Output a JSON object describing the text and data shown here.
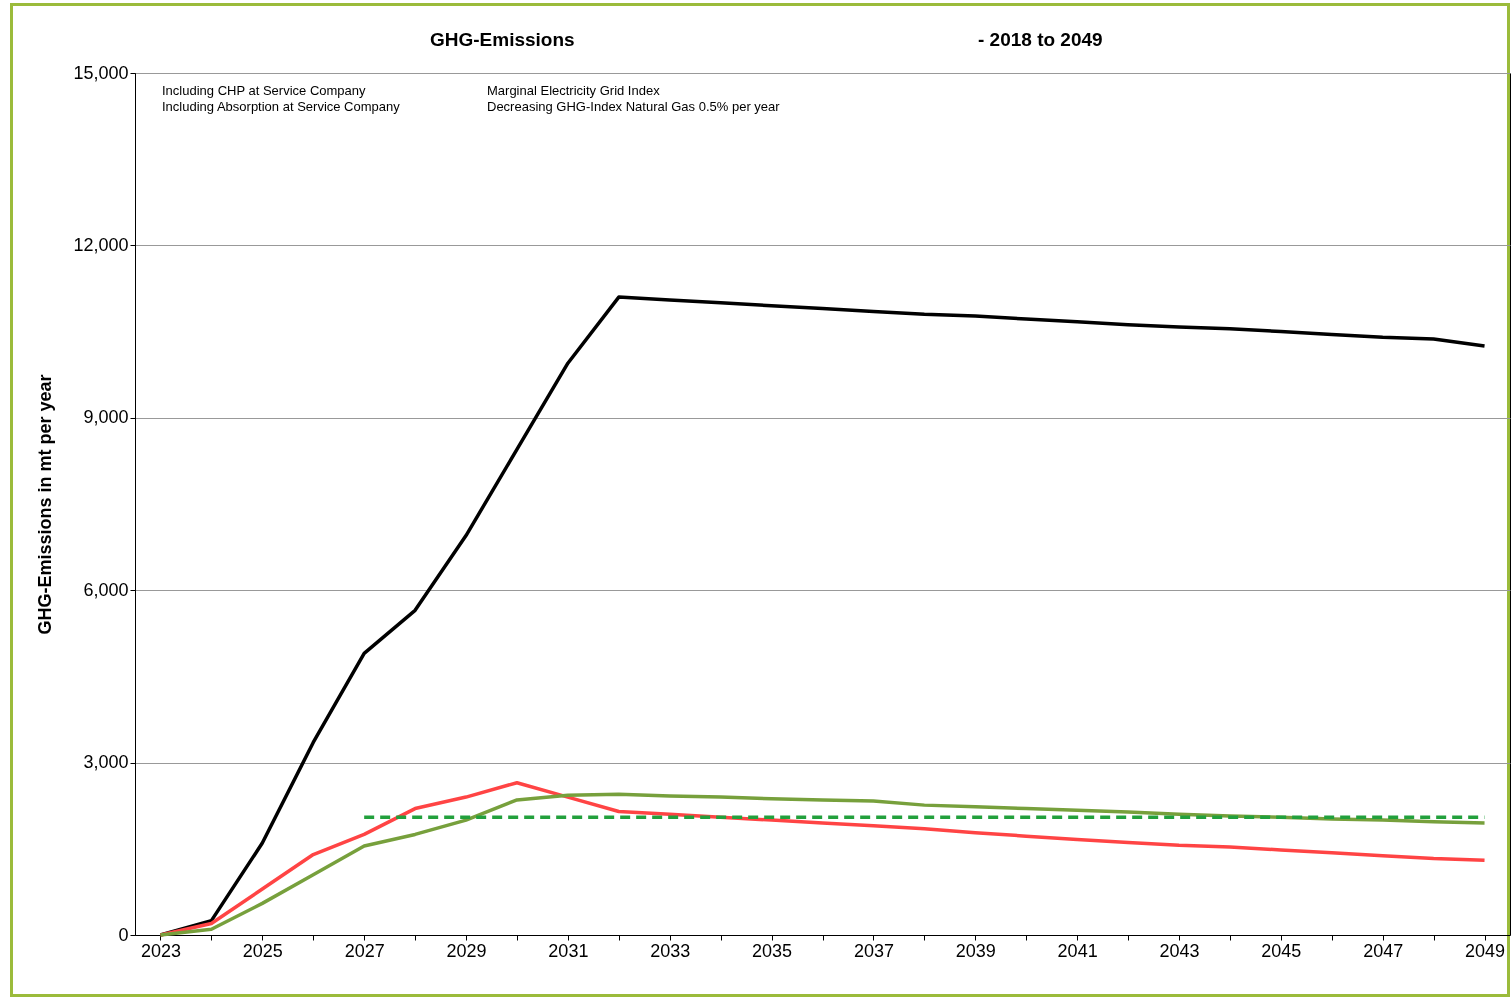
{
  "chart_data": {
    "type": "line",
    "title": "GHG-Emissions",
    "subtitle": "- 2018 to 2049",
    "ylabel": "GHG-Emissions  in mt per year",
    "categories": [
      "2023",
      null,
      "2025",
      null,
      "2027",
      null,
      "2029",
      null,
      "2031",
      null,
      "2033",
      null,
      "2035",
      null,
      "2037",
      null,
      "2039",
      null,
      "2041",
      null,
      "2043",
      null,
      "2045",
      null,
      "2047",
      null,
      "2049"
    ],
    "series": [
      {
        "color": "#000000",
        "values": [
          0,
          250,
          1600,
          3350,
          4900,
          5650,
          6950,
          8450,
          9950,
          11100,
          11050,
          11000,
          10950,
          10900,
          10850,
          10800,
          10770,
          10720,
          10670,
          10620,
          10580,
          10550,
          10500,
          10450,
          10400,
          10370,
          10250
        ]
      },
      {
        "color": "#ff4444",
        "values": [
          0,
          200,
          800,
          1400,
          1750,
          2200,
          2400,
          2650,
          2400,
          2150,
          2100,
          2050,
          2000,
          1950,
          1900,
          1850,
          1780,
          1720,
          1660,
          1610,
          1560,
          1530,
          1480,
          1430,
          1380,
          1330,
          1300
        ]
      },
      {
        "color": "#77a03c",
        "values": [
          0,
          100,
          550,
          1050,
          1550,
          1750,
          2000,
          2350,
          2430,
          2450,
          2420,
          2400,
          2370,
          2350,
          2330,
          2260,
          2230,
          2200,
          2170,
          2140,
          2100,
          2070,
          2050,
          2020,
          2000,
          1970,
          1950
        ]
      },
      {
        "color": "#22a03c",
        "line_style": "dashed",
        "values": [
          null,
          null,
          null,
          null,
          2050,
          2050,
          2050,
          2050,
          2050,
          2050,
          2050,
          2050,
          2050,
          2050,
          2050,
          2050,
          2050,
          2050,
          2050,
          2050,
          2050,
          2050,
          2050,
          2050,
          2050,
          2050,
          2050
        ]
      }
    ],
    "ylim": [
      0,
      15000
    ],
    "yticks": [
      0,
      {
        "value": 3000,
        "label": "3,000"
      },
      {
        "value": 6000,
        "label": "6,000"
      },
      {
        "value": 9000,
        "label": "9,000"
      },
      {
        "value": 12000,
        "label": "12,000"
      },
      {
        "value": 15000,
        "label": "15,000"
      }
    ],
    "grid": "y",
    "line_style": "solid",
    "annotations": [
      "Including CHP at Service Company",
      "Including Absorption at Service Company",
      "Marginal Electricity Grid Index",
      "Decreasing GHG-Index Natural Gas 0.5% per year"
    ]
  }
}
